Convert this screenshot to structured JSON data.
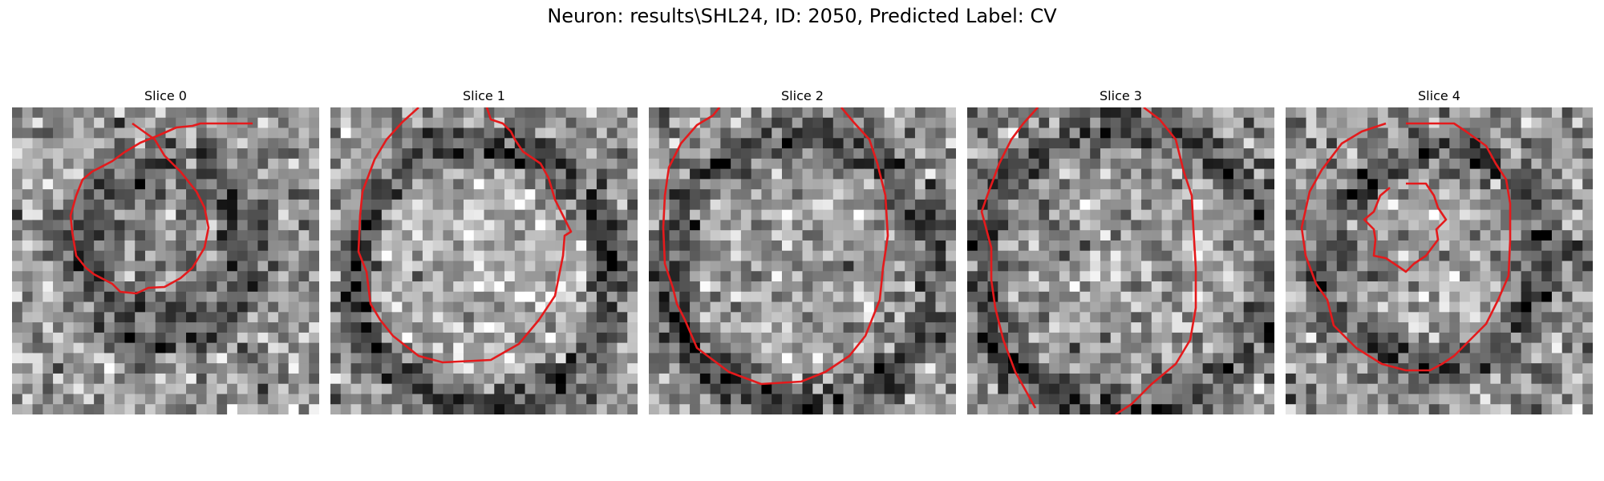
{
  "figure": {
    "title": "Neuron: results\\SHL24, ID: 2050, Predicted Label: CV"
  },
  "panels": [
    {
      "title": "Slice 0"
    },
    {
      "title": "Slice 1"
    },
    {
      "title": "Slice 2"
    },
    {
      "title": "Slice 3"
    },
    {
      "title": "Slice 4"
    }
  ],
  "colors": {
    "contour": "#e41a1c",
    "background": "#ffffff"
  }
}
